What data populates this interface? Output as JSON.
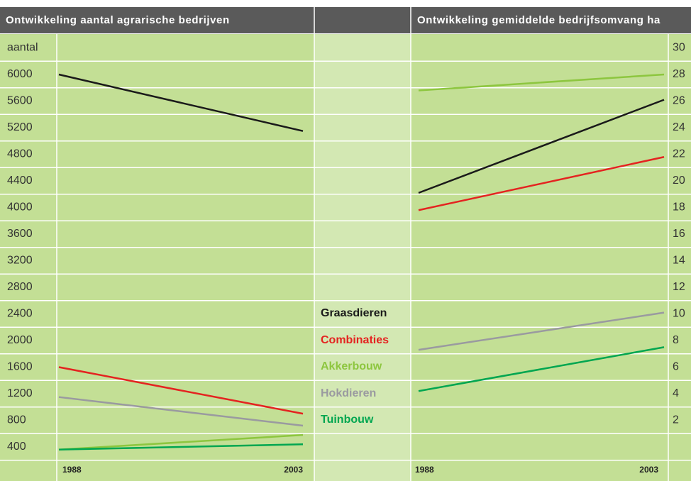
{
  "chart_data": [
    {
      "type": "line",
      "title": "Ontwikkeling aantal agrarische bedrijven",
      "ylabel": "aantal",
      "categories": [
        "1988",
        "2003"
      ],
      "series": [
        {
          "name": "Graasdieren",
          "color": "#1a1a1a",
          "values": [
            6000,
            5150
          ]
        },
        {
          "name": "Combinaties",
          "color": "#e42320",
          "values": [
            1600,
            900
          ]
        },
        {
          "name": "Akkerbouw",
          "color": "#8dc63f",
          "values": [
            360,
            580
          ]
        },
        {
          "name": "Hokdieren",
          "color": "#9a9aa0",
          "values": [
            1150,
            720
          ]
        },
        {
          "name": "Tuinbouw",
          "color": "#00a650",
          "values": [
            360,
            440
          ]
        }
      ],
      "ylim": [
        400,
        6400
      ],
      "yticks": [
        400,
        800,
        1200,
        1600,
        2000,
        2400,
        2800,
        3200,
        3600,
        4000,
        4400,
        4800,
        5200,
        5600,
        6000
      ],
      "axis_side": "left"
    },
    {
      "type": "line",
      "title": "Ontwikkeling gemiddelde bedrijfsomvang ha",
      "categories": [
        "1988",
        "2003"
      ],
      "series": [
        {
          "color": "#1a1a1a",
          "values": [
            19.1,
            26.1
          ]
        },
        {
          "color": "#e42320",
          "values": [
            17.8,
            21.8
          ]
        },
        {
          "color": "#8dc63f",
          "values": [
            26.8,
            28
          ]
        },
        {
          "color": "#9a9aa0",
          "values": [
            7.3,
            10.1
          ]
        },
        {
          "color": "#00a650",
          "values": [
            4.2,
            7.5
          ]
        }
      ],
      "ylim": [
        0,
        30
      ],
      "yticks": [
        2,
        4,
        6,
        8,
        10,
        12,
        14,
        16,
        18,
        20,
        22,
        24,
        26,
        28,
        30
      ],
      "axis_side": "right"
    }
  ]
}
